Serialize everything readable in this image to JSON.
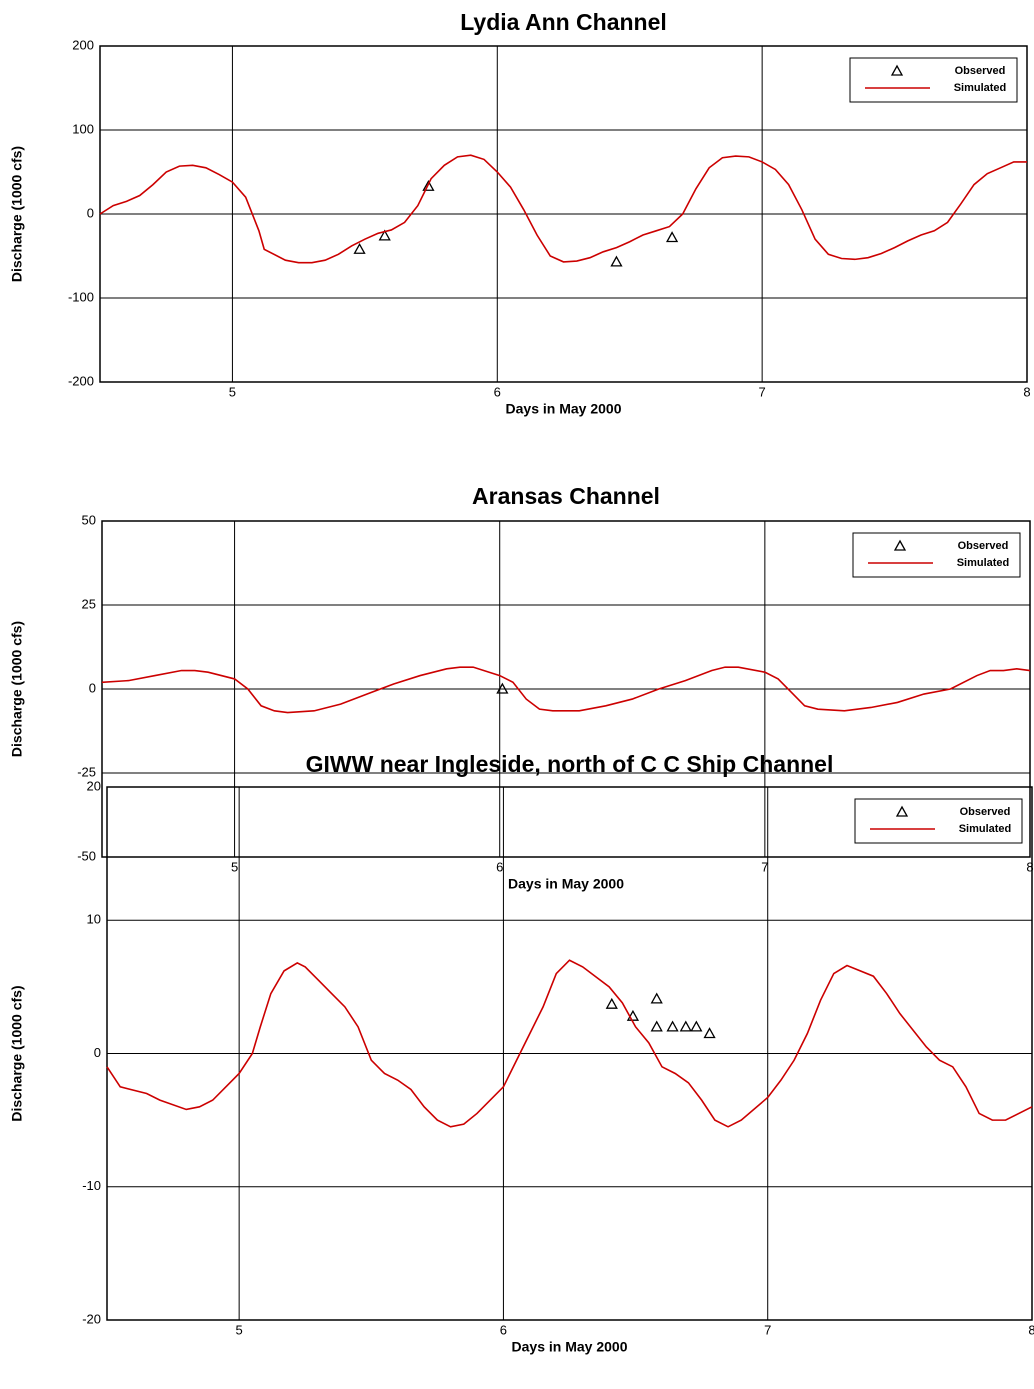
{
  "chart_data": [
    {
      "type": "line",
      "title": "Lydia Ann Channel",
      "x_label": "Days in May 2000",
      "y_label": "Discharge (1000 cfs)",
      "xlim": [
        4.5,
        8
      ],
      "xticks": [
        5,
        6,
        7,
        8
      ],
      "ylim": [
        -200,
        200
      ],
      "yticks": [
        -200,
        -100,
        0,
        100,
        200
      ],
      "grid": true,
      "legend": "upper right",
      "series": [
        {
          "name": "Observed",
          "type": "scatter",
          "color": "#000000",
          "x": [
            5.48,
            5.575,
            5.74,
            6.45,
            6.66
          ],
          "values": [
            -42,
            -26,
            33,
            -57,
            -28
          ]
        },
        {
          "name": "Simulated",
          "type": "line",
          "color": "#cc0000",
          "x": [
            4.5,
            4.55,
            4.6,
            4.65,
            4.7,
            4.75,
            4.8,
            4.85,
            4.9,
            4.95,
            5.0,
            5.05,
            5.1,
            5.12,
            5.2,
            5.25,
            5.3,
            5.35,
            5.4,
            5.45,
            5.5,
            5.55,
            5.6,
            5.65,
            5.7,
            5.75,
            5.8,
            5.85,
            5.9,
            5.95,
            6.0,
            6.05,
            6.1,
            6.15,
            6.2,
            6.25,
            6.3,
            6.35,
            6.4,
            6.45,
            6.5,
            6.55,
            6.6,
            6.65,
            6.7,
            6.75,
            6.8,
            6.85,
            6.9,
            6.95,
            7.0,
            7.05,
            7.1,
            7.15,
            7.2,
            7.25,
            7.3,
            7.35,
            7.4,
            7.45,
            7.5,
            7.55,
            7.6,
            7.65,
            7.7,
            7.75,
            7.8,
            7.85,
            7.9,
            7.95,
            8.0
          ],
          "values": [
            0,
            10,
            15,
            22,
            35,
            50,
            57,
            58,
            55,
            47,
            38,
            20,
            -20,
            -42,
            -55,
            -58,
            -58,
            -55,
            -48,
            -38,
            -30,
            -23,
            -19,
            -10,
            10,
            42,
            58,
            68,
            70,
            65,
            50,
            32,
            5,
            -25,
            -50,
            -57,
            -56,
            -52,
            -45,
            -40,
            -33,
            -25,
            -20,
            -15,
            0,
            30,
            55,
            67,
            69,
            68,
            62,
            53,
            35,
            5,
            -30,
            -48,
            -53,
            -54,
            -52,
            -47,
            -40,
            -32,
            -25,
            -20,
            -10,
            12,
            35,
            48,
            55,
            62,
            62
          ]
        }
      ]
    },
    {
      "type": "line",
      "title": "Aransas Channel",
      "x_label": "Days in May 2000",
      "y_label": "Discharge (1000 cfs)",
      "xlim": [
        4.5,
        8
      ],
      "xticks": [
        5,
        6,
        7,
        8
      ],
      "ylim": [
        -50,
        50
      ],
      "yticks": [
        -50,
        -25,
        0,
        25,
        50
      ],
      "grid": true,
      "legend": "upper right",
      "series": [
        {
          "name": "Observed",
          "type": "scatter",
          "color": "#000000",
          "x": [
            6.01
          ],
          "values": [
            0
          ]
        },
        {
          "name": "Simulated",
          "type": "line",
          "color": "#cc0000",
          "x": [
            4.5,
            4.6,
            4.7,
            4.8,
            4.85,
            4.9,
            5.0,
            5.05,
            5.1,
            5.15,
            5.2,
            5.3,
            5.4,
            5.5,
            5.6,
            5.7,
            5.8,
            5.85,
            5.9,
            6.0,
            6.05,
            6.1,
            6.15,
            6.2,
            6.3,
            6.4,
            6.5,
            6.6,
            6.7,
            6.8,
            6.85,
            6.9,
            7.0,
            7.05,
            7.1,
            7.15,
            7.2,
            7.3,
            7.4,
            7.5,
            7.6,
            7.7,
            7.8,
            7.85,
            7.9,
            7.95,
            8.0
          ],
          "values": [
            2,
            2.5,
            4,
            5.5,
            5.5,
            5,
            3,
            0,
            -5,
            -6.5,
            -7,
            -6.5,
            -4.5,
            -1.5,
            1.5,
            4,
            6,
            6.5,
            6.5,
            4,
            2,
            -3,
            -6,
            -6.5,
            -6.5,
            -5,
            -3,
            0,
            2.5,
            5.5,
            6.5,
            6.5,
            5,
            3,
            -1,
            -5,
            -6,
            -6.5,
            -5.5,
            -4,
            -1.5,
            0,
            4,
            5.5,
            5.5,
            6,
            5.5
          ]
        }
      ]
    },
    {
      "type": "line",
      "title": "GIWW near Ingleside, north of C C Ship Channel",
      "x_label": "Days in May 2000",
      "y_label": "Discharge (1000 cfs)",
      "xlim": [
        4.5,
        8
      ],
      "xticks": [
        5,
        6,
        7,
        8
      ],
      "ylim": [
        -20,
        20
      ],
      "yticks": [
        -20,
        -10,
        0,
        10,
        20
      ],
      "grid": true,
      "legend": "upper right",
      "series": [
        {
          "name": "Observed",
          "type": "scatter",
          "color": "#000000",
          "x": [
            6.41,
            6.49,
            6.58,
            6.58,
            6.64,
            6.69,
            6.73,
            6.78
          ],
          "values": [
            3.7,
            2.8,
            4.1,
            2,
            2,
            2,
            2,
            1.5
          ]
        },
        {
          "name": "Simulated",
          "type": "line",
          "color": "#cc0000",
          "x": [
            4.5,
            4.55,
            4.65,
            4.7,
            4.8,
            4.85,
            4.9,
            4.95,
            5.0,
            5.05,
            5.08,
            5.12,
            5.17,
            5.22,
            5.25,
            5.3,
            5.35,
            5.4,
            5.45,
            5.5,
            5.55,
            5.6,
            5.65,
            5.7,
            5.75,
            5.8,
            5.85,
            5.9,
            6.0,
            6.05,
            6.1,
            6.15,
            6.2,
            6.25,
            6.3,
            6.4,
            6.45,
            6.5,
            6.55,
            6.6,
            6.65,
            6.7,
            6.75,
            6.8,
            6.85,
            6.9,
            7.0,
            7.05,
            7.1,
            7.15,
            7.2,
            7.25,
            7.3,
            7.4,
            7.45,
            7.5,
            7.6,
            7.65,
            7.7,
            7.75,
            7.8,
            7.85,
            7.9,
            8.0
          ],
          "values": [
            -1,
            -2.5,
            -3,
            -3.5,
            -4.2,
            -4,
            -3.5,
            -2.5,
            -1.5,
            0,
            2,
            4.5,
            6.2,
            6.8,
            6.5,
            5.5,
            4.5,
            3.5,
            2,
            -0.5,
            -1.5,
            -2,
            -2.7,
            -4,
            -5,
            -5.5,
            -5.3,
            -4.5,
            -2.5,
            -0.5,
            1.5,
            3.5,
            6,
            7,
            6.5,
            5,
            3.8,
            2,
            0.8,
            -1,
            -1.5,
            -2.2,
            -3.5,
            -5,
            -5.5,
            -5,
            -3.3,
            -2,
            -0.5,
            1.5,
            4,
            6,
            6.6,
            5.8,
            4.5,
            3,
            0.5,
            -0.5,
            -1,
            -2.5,
            -4.5,
            -5,
            -5,
            -4
          ]
        }
      ]
    }
  ]
}
